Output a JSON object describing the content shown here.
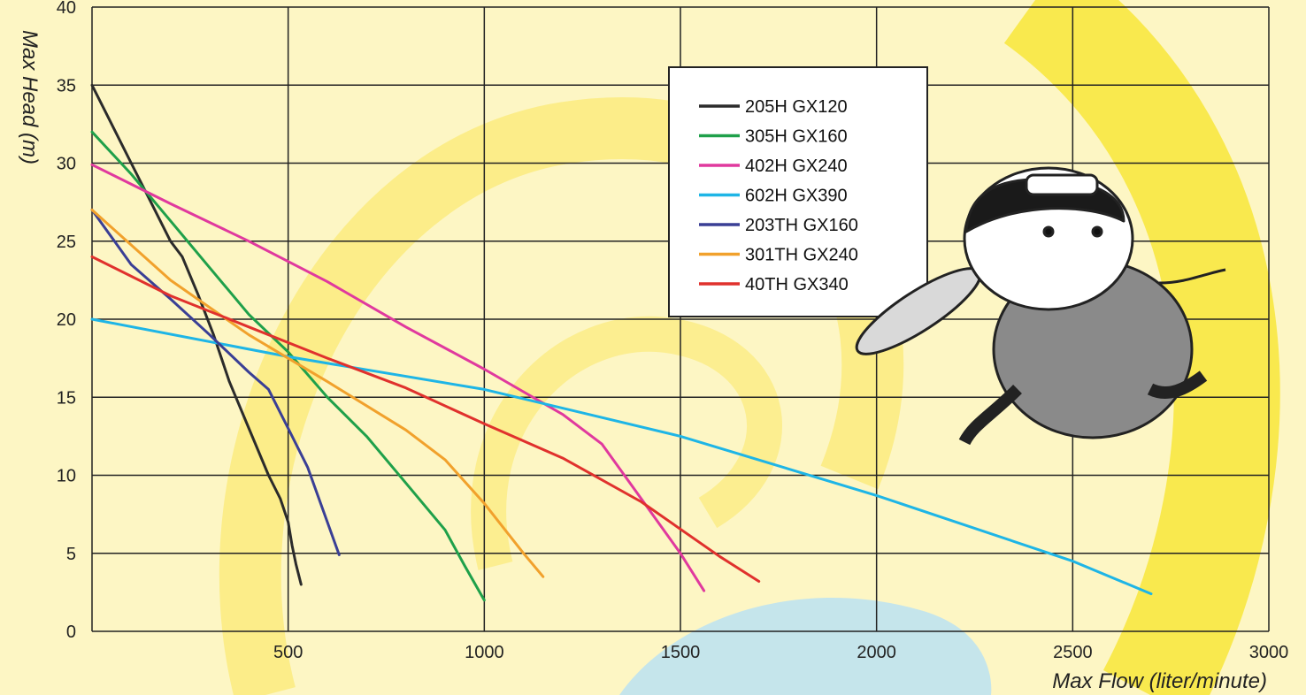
{
  "chart_data": {
    "type": "line",
    "xlabel": "Max Flow (liter/minute)",
    "ylabel": "Max Head (m)",
    "xlim": [
      0,
      3000
    ],
    "ylim": [
      0,
      40
    ],
    "x_ticks": [
      "500",
      "1000",
      "1500",
      "2000",
      "2500",
      "3000"
    ],
    "y_ticks": [
      "0",
      "5",
      "10",
      "15",
      "20",
      "25",
      "30",
      "35",
      "40"
    ],
    "grid": true,
    "legend_position": "top-center",
    "series": [
      {
        "name": "205H GX120",
        "color": "#2b2b2b",
        "x": [
          0,
          50,
          100,
          150,
          200,
          230,
          270,
          310,
          350,
          400,
          450,
          480,
          500,
          510,
          520,
          533
        ],
        "y": [
          35,
          32.5,
          30,
          27.5,
          25,
          24,
          21.6,
          19,
          16,
          13,
          10,
          8.5,
          7,
          5.5,
          4.3,
          3
        ]
      },
      {
        "name": "305H GX160",
        "color": "#1fa04a",
        "x": [
          0,
          100,
          200,
          300,
          400,
          500,
          600,
          700,
          800,
          900,
          950,
          1000
        ],
        "y": [
          32,
          29.3,
          26.3,
          23.3,
          20.3,
          17.9,
          15,
          12.5,
          9.5,
          6.5,
          4.2,
          2
        ]
      },
      {
        "name": "402H GX240",
        "color": "#e0399e",
        "x": [
          0,
          200,
          400,
          600,
          800,
          1000,
          1200,
          1300,
          1400,
          1500,
          1560
        ],
        "y": [
          29.9,
          27.4,
          25,
          22.4,
          19.5,
          16.8,
          13.9,
          12,
          8.5,
          5,
          2.6
        ]
      },
      {
        "name": "602H GX390",
        "color": "#1eb5e6",
        "x": [
          0,
          500,
          1000,
          1500,
          2000,
          2500,
          2700
        ],
        "y": [
          20,
          17.6,
          15.5,
          12.5,
          8.7,
          4.5,
          2.4
        ]
      },
      {
        "name": "203TH GX160",
        "color": "#3a3f95",
        "x": [
          0,
          100,
          200,
          300,
          400,
          450,
          500,
          550,
          600,
          630
        ],
        "y": [
          27,
          23.5,
          21.3,
          19,
          16.6,
          15.5,
          13,
          10.5,
          7,
          4.9
        ]
      },
      {
        "name": "301TH GX240",
        "color": "#f1a12c",
        "x": [
          0,
          200,
          400,
          600,
          800,
          900,
          1000,
          1100,
          1150
        ],
        "y": [
          27,
          22.5,
          19,
          16,
          12.9,
          11,
          8.2,
          5,
          3.5
        ]
      },
      {
        "name": "40TH GX340",
        "color": "#e0312d",
        "x": [
          0,
          200,
          400,
          600,
          800,
          1000,
          1200,
          1400,
          1600,
          1700
        ],
        "y": [
          24,
          21.5,
          19.5,
          17.5,
          15.6,
          13.3,
          11.1,
          8.3,
          4.8,
          3.2
        ]
      }
    ]
  }
}
